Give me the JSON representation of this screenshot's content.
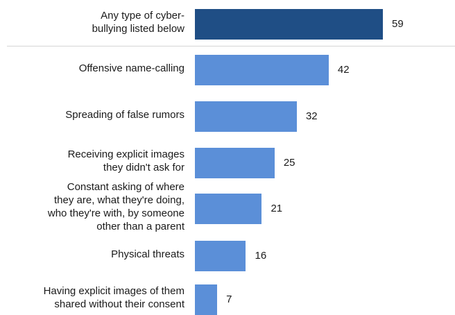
{
  "chart_data": {
    "type": "bar",
    "orientation": "horizontal",
    "categories": [
      [
        "Any type of cyber-",
        "bullying listed below"
      ],
      [
        "Offensive name-calling"
      ],
      [
        "Spreading of false rumors"
      ],
      [
        "Receiving explicit images",
        "they didn't ask for"
      ],
      [
        "Constant asking of where",
        "they are, what they're doing,",
        "who they're with, by someone",
        "other than a parent"
      ],
      [
        "Physical threats"
      ],
      [
        "Having explicit images of them",
        "shared without their consent"
      ]
    ],
    "values": [
      59,
      42,
      32,
      25,
      21,
      16,
      7
    ],
    "value_labels": [
      "59",
      "42",
      "32",
      "25",
      "21",
      "16",
      "7"
    ],
    "colors": {
      "highlight": "#1f4e85",
      "default": "#5b8fd8"
    },
    "highlight_index": 0,
    "xlim": [
      0,
      100
    ],
    "grid": false
  }
}
